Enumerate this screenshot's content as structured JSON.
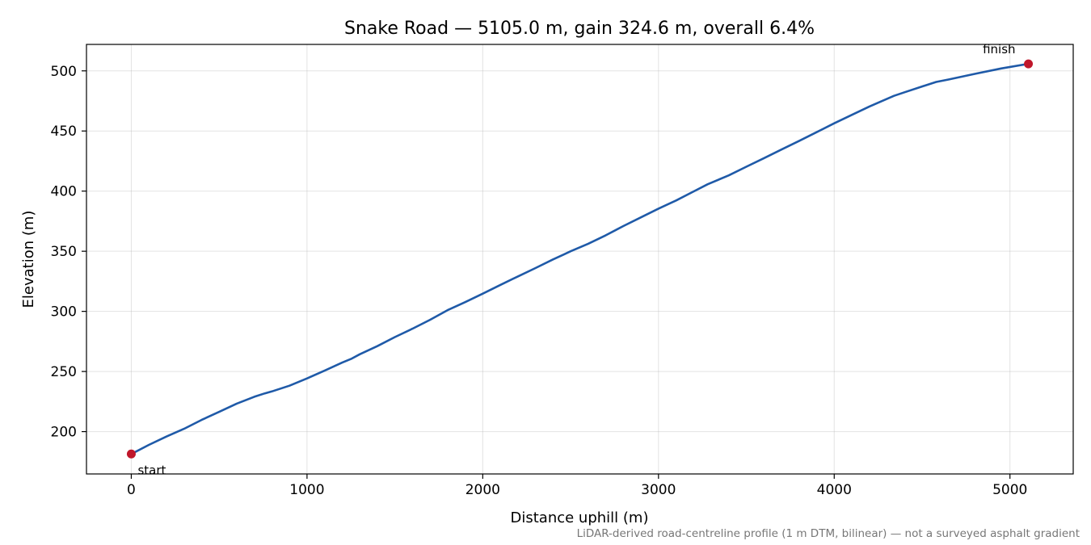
{
  "chart_data": {
    "type": "line",
    "title": "Snake Road — 5105.0 m, gain 324.6 m, overall 6.4%",
    "xlabel": "Distance uphill (m)",
    "ylabel": "Elevation (m)",
    "xlim": [
      -255,
      5360
    ],
    "ylim": [
      164.8,
      522
    ],
    "xticks": [
      0,
      1000,
      2000,
      3000,
      4000,
      5000
    ],
    "yticks": [
      200,
      250,
      300,
      350,
      400,
      450,
      500
    ],
    "grid": true,
    "colors": {
      "line": "#1f5aa8",
      "marker": "#c0172b"
    },
    "series": [
      {
        "x": [
          0,
          100,
          200,
          300,
          400,
          500,
          600,
          700,
          760,
          800,
          900,
          1000,
          1100,
          1200,
          1250,
          1300,
          1400,
          1500,
          1600,
          1700,
          1800,
          1900,
          2000,
          2100,
          2200,
          2300,
          2400,
          2460,
          2500,
          2600,
          2700,
          2800,
          2900,
          3000,
          3100,
          3200,
          3280,
          3400,
          3500,
          3600,
          3700,
          3800,
          3900,
          4000,
          4100,
          4200,
          4340,
          4400,
          4500,
          4580,
          4650,
          4800,
          4950,
          5105
        ],
        "y": [
          181.4,
          189,
          195.9,
          202.3,
          209.7,
          216.4,
          223.3,
          229,
          231.8,
          233.4,
          238.2,
          244.2,
          250.7,
          257.4,
          260.4,
          264.3,
          271.1,
          278.6,
          285.6,
          293,
          301,
          307.7,
          314.7,
          322,
          329,
          336,
          343.2,
          347.2,
          350,
          356.2,
          363.3,
          370.9,
          378.2,
          385.4,
          392.2,
          399.7,
          405.7,
          413.1,
          420.3,
          427.4,
          434.6,
          441.7,
          449,
          456.4,
          463.4,
          470.4,
          479.2,
          482.2,
          487,
          490.8,
          492.8,
          497.5,
          502,
          505.8
        ]
      }
    ],
    "annotations": [
      {
        "label": "start",
        "x": 0,
        "y": 181.4
      },
      {
        "label": "finish",
        "x": 5105,
        "y": 505.8
      }
    ],
    "footnote": "LiDAR-derived road-centreline profile (1 m DTM, bilinear) — not a surveyed asphalt gradient"
  }
}
